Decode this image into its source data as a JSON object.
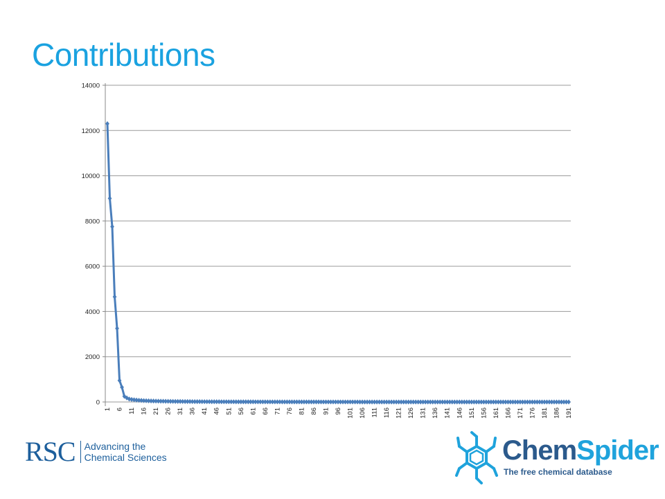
{
  "slide": {
    "title": "Contributions"
  },
  "chart_data": {
    "type": "line",
    "title": "",
    "xlabel": "",
    "ylabel": "",
    "x_range": [
      1,
      191
    ],
    "x_tick_step": 5,
    "ylim": [
      0,
      14000
    ],
    "yticks": [
      0,
      2000,
      4000,
      6000,
      8000,
      10000,
      12000,
      14000
    ],
    "grid": "horizontal",
    "legend": "none",
    "marker": "diamond",
    "color": "#4a7ebb",
    "series": [
      {
        "values": [
          12300,
          9000,
          7750,
          4650,
          3250,
          950,
          650,
          250,
          180,
          130,
          110,
          95,
          85,
          75,
          68,
          60,
          55,
          50,
          46,
          43,
          40,
          37,
          35,
          33,
          31,
          29,
          27,
          25,
          24,
          23,
          22,
          21,
          20,
          19,
          18,
          17,
          16,
          15,
          15,
          14,
          14,
          13,
          13,
          12,
          12,
          11,
          11,
          10,
          10,
          10,
          9,
          9,
          9,
          8,
          8,
          8,
          8,
          7,
          7,
          7,
          7,
          6,
          6,
          6,
          6,
          6,
          5,
          5,
          5,
          5,
          5,
          5,
          4,
          4,
          4,
          4,
          4,
          4,
          4,
          3,
          3,
          3,
          3,
          3,
          3,
          3,
          3,
          3,
          2,
          2,
          2,
          2,
          2,
          2,
          2,
          2,
          2,
          2,
          2,
          2,
          2,
          2,
          2,
          2,
          1,
          1,
          1,
          1,
          1,
          1,
          1,
          1,
          1,
          1,
          1,
          1,
          1,
          1,
          1,
          1,
          1,
          1,
          1,
          1,
          1,
          1,
          1,
          1,
          1,
          1,
          1,
          1,
          1,
          1,
          1,
          1,
          1,
          1,
          1,
          1,
          1,
          1,
          1,
          1,
          1,
          1,
          1,
          1,
          1,
          1,
          1,
          1,
          1,
          1,
          1,
          1,
          1,
          1,
          1,
          1,
          1,
          1,
          1,
          1,
          1,
          1,
          1,
          1,
          1,
          1,
          1,
          1,
          1,
          1,
          1,
          1,
          1,
          1,
          1,
          1,
          1,
          1,
          1,
          1,
          1,
          1,
          1,
          1,
          1,
          1,
          1
        ]
      }
    ]
  },
  "logos": {
    "rsc": {
      "mark": "RSC",
      "line1": "Advancing the",
      "line2": "Chemical Sciences",
      "color": "#1d5f9c"
    },
    "chemspider": {
      "name_part1": "Chem",
      "name_part2": "Spider",
      "tagline": "The free chemical database",
      "color_dark": "#2b5a8c",
      "color_light": "#1fa3dc"
    }
  }
}
